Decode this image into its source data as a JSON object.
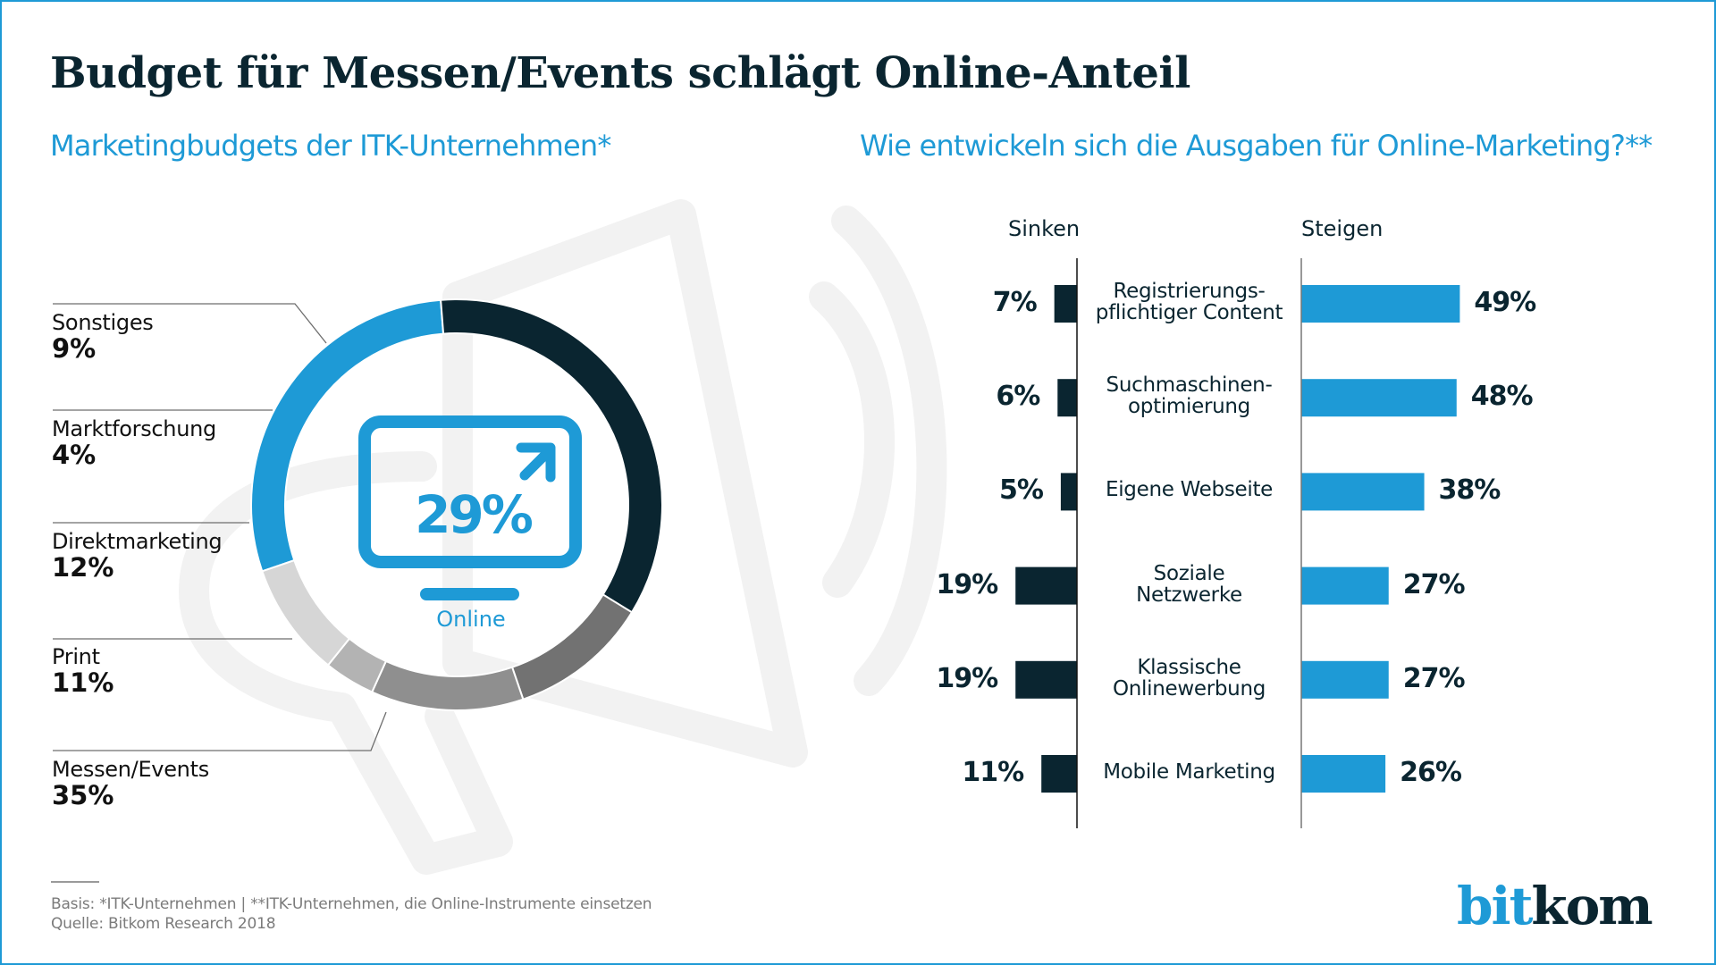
{
  "header": {
    "title": "Budget für Messen/Events schlägt Online-Anteil",
    "subtitle_left": "Marketingbudgets der ITK-Unternehmen*",
    "subtitle_right": "Wie entwickeln sich die Ausgaben für Online-Marketing?**"
  },
  "colors": {
    "accent": "#1e9ad6",
    "dark": "#0a2530",
    "gray1": "#d6d6d6",
    "gray2": "#b3b3b3",
    "gray3": "#8f8f8f",
    "gray4": "#727272",
    "watermark": "#f2f2f2"
  },
  "chart_data": [
    {
      "type": "pie",
      "title": "Marketingbudgets der ITK-Unternehmen*",
      "center_label": "Online",
      "center_value": "29%",
      "slices": [
        {
          "label": "Online",
          "value": 29,
          "display": "29%",
          "color": "#1e9ad6"
        },
        {
          "label": "Messen/Events",
          "value": 35,
          "display": "35%",
          "color": "#0a2530"
        },
        {
          "label": "Print",
          "value": 11,
          "display": "11%",
          "color": "#727272"
        },
        {
          "label": "Direktmarketing",
          "value": 12,
          "display": "12%",
          "color": "#8f8f8f"
        },
        {
          "label": "Marktforschung",
          "value": 4,
          "display": "4%",
          "color": "#b3b3b3"
        },
        {
          "label": "Sonstiges",
          "value": 9,
          "display": "9%",
          "color": "#d6d6d6"
        }
      ]
    },
    {
      "type": "bar",
      "title": "Wie entwickeln sich die Ausgaben für Online-Marketing?**",
      "orientation": "horizontal-diverging",
      "series_labels": {
        "left": "Sinken",
        "right": "Steigen"
      },
      "categories": [
        [
          "Registrierungs-",
          "pflichtiger Content"
        ],
        [
          "Suchmaschinen-",
          "optimierung"
        ],
        [
          "Eigene Webseite"
        ],
        [
          "Soziale",
          "Netzwerke"
        ],
        [
          "Klassische",
          "Onlinewerbung"
        ],
        [
          "Mobile Marketing"
        ]
      ],
      "series": [
        {
          "name": "Sinken",
          "values": [
            7,
            6,
            5,
            19,
            19,
            11
          ],
          "labels": [
            "7%",
            "6%",
            "5%",
            "19%",
            "19%",
            "11%"
          ],
          "color": "#0a2530"
        },
        {
          "name": "Steigen",
          "values": [
            49,
            48,
            38,
            27,
            27,
            26
          ],
          "labels": [
            "49%",
            "48%",
            "38%",
            "27%",
            "27%",
            "26%"
          ],
          "color": "#1e9ad6"
        }
      ],
      "unit": "%"
    }
  ],
  "footer": {
    "basis": "Basis: *ITK-Unternehmen | **ITK-Unternehmen, die Online-Instrumente einsetzen",
    "source": "Quelle: Bitkom Research 2018"
  },
  "logo": {
    "part1": "bit",
    "part2": "kom"
  }
}
